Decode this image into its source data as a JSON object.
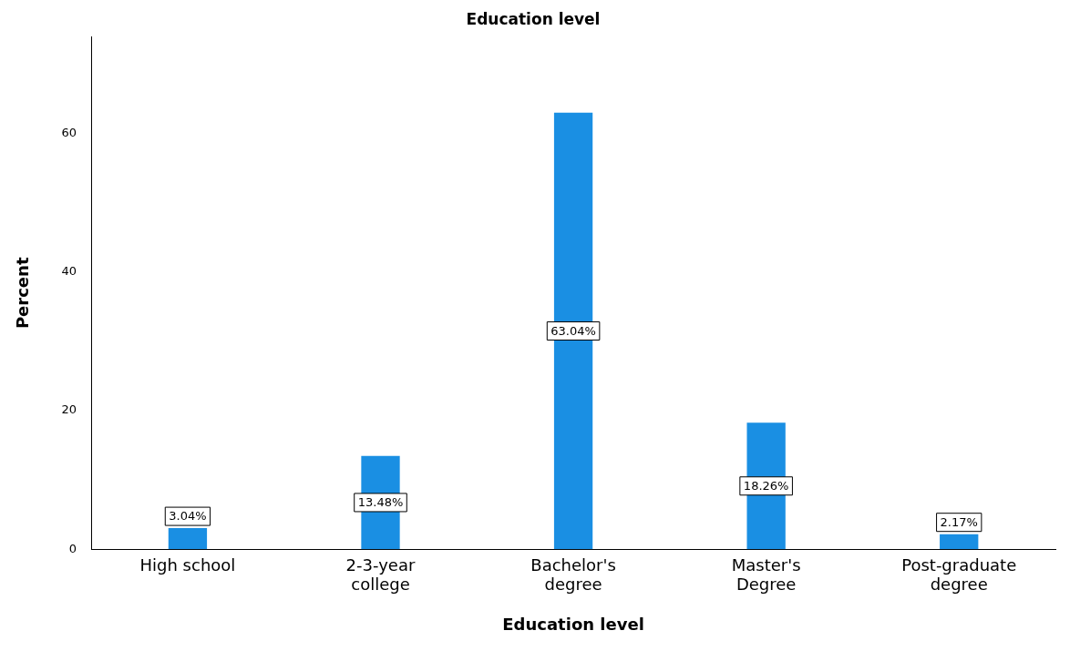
{
  "chart_data": {
    "type": "bar",
    "title": "Education level",
    "xlabel": "Education level",
    "ylabel": "Percent",
    "categories": [
      "High school",
      "2-3-year\ncollege",
      "Bachelor's\ndegree",
      "Master's\nDegree",
      "Post-graduate\ndegree"
    ],
    "values": [
      3.04,
      13.48,
      63.04,
      18.26,
      2.17
    ],
    "color": "#1a8fe3",
    "value_labels": [
      "3.04%",
      "13.48%",
      "63.04%",
      "18.26%",
      "2.17%"
    ],
    "ylim": [
      0,
      74
    ],
    "yticks": [
      0,
      20,
      40,
      60
    ],
    "grid": false,
    "legend": false
  }
}
